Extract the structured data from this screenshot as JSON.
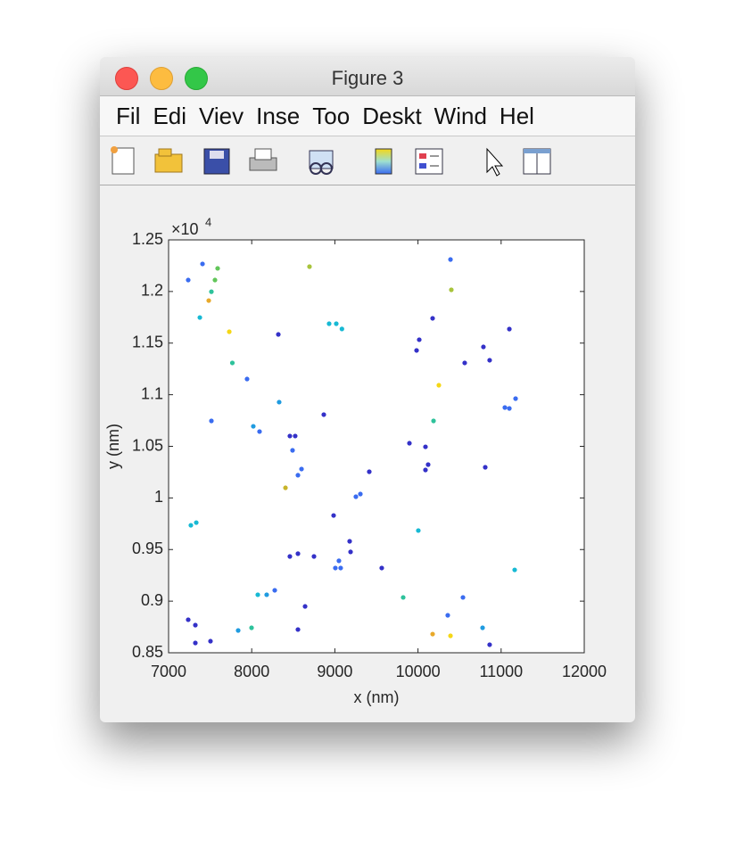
{
  "window": {
    "title": "Figure 3",
    "menu": [
      "Fil",
      "Edi",
      "Viev",
      "Inse",
      "Too",
      "Deskt",
      "Wind",
      "Hel"
    ]
  },
  "chart_data": {
    "type": "scatter",
    "xlabel": "x (nm)",
    "ylabel": "y (nm)",
    "y_exponent_base": "×10",
    "y_exponent": "4",
    "xlim": [
      7000,
      12000
    ],
    "xticks": [
      7000,
      8000,
      9000,
      10000,
      11000,
      12000
    ],
    "ylim": [
      8500,
      12500
    ],
    "yticks": [
      {
        "value": 8500,
        "label": "0.85"
      },
      {
        "value": 9000,
        "label": "0.9"
      },
      {
        "value": 9500,
        "label": "0.95"
      },
      {
        "value": 10000,
        "label": "1"
      },
      {
        "value": 10500,
        "label": "1.05"
      },
      {
        "value": 11000,
        "label": "1.1"
      },
      {
        "value": 11500,
        "label": "1.15"
      },
      {
        "value": 12000,
        "label": "1.2"
      },
      {
        "value": 12500,
        "label": "1.25"
      }
    ],
    "x": [
      7236,
      7408,
      7590,
      7558,
      7483,
      7515,
      7376,
      7730,
      7767,
      7944,
      7515,
      8019,
      8094,
      8330,
      8320,
      8695,
      8491,
      8459,
      8523,
      8599,
      8556,
      8406,
      8867,
      9017,
      8931,
      9085,
      9414,
      9307,
      9253,
      8985,
      9178,
      9189,
      9049,
      9006,
      9070,
      9564,
      8749,
      8459,
      8556,
      8277,
      8073,
      8180,
      7998,
      7837,
      8642,
      8556,
      7236,
      7322,
      7322,
      7504,
      7333,
      7268,
      10391,
      10401,
      10176,
      10015,
      9983,
      10251,
      10187,
      9897,
      10090,
      10122,
      10090,
      10004,
      9822,
      10176,
      10391,
      10358,
      10541,
      10562,
      10787,
      10862,
      11099,
      11045,
      11099,
      11174,
      10809,
      11163,
      10777,
      10862
    ],
    "y": [
      12111,
      12267,
      12224,
      12111,
      11912,
      11998,
      11748,
      11610,
      11308,
      11152,
      10746,
      10694,
      10643,
      10928,
      11584,
      12241,
      10461,
      10600,
      10600,
      10280,
      10220,
      10098,
      10807,
      11688,
      11688,
      11637,
      10254,
      10038,
      10012,
      9830,
      9580,
      9477,
      9391,
      9321,
      9321,
      9321,
      9433,
      9433,
      9460,
      9105,
      9062,
      9062,
      8742,
      8716,
      8949,
      8725,
      8820,
      8768,
      8595,
      8612,
      9761,
      9735,
      12310,
      12016,
      11740,
      11533,
      11429,
      11092,
      10746,
      10530,
      10495,
      10323,
      10271,
      9684,
      9036,
      8681,
      8664,
      8863,
      9036,
      11308,
      11463,
      11334,
      11636,
      10876,
      10867,
      10962,
      10297,
      9303,
      8742,
      8578
    ],
    "colors": [
      "#3a6cf0",
      "#3a6cf0",
      "#62c65a",
      "#62c65a",
      "#e8a92a",
      "#2ec29b",
      "#17b9d4",
      "#f5d716",
      "#2ec29b",
      "#3a6cf0",
      "#3a6cf0",
      "#1f9be0",
      "#3a6cf0",
      "#1f9be0",
      "#3431c8",
      "#a8c43c",
      "#3a6cf0",
      "#3431c8",
      "#3431c8",
      "#3a6cf0",
      "#3a6cf0",
      "#c8b42a",
      "#3431c8",
      "#17b9d4",
      "#17b9d4",
      "#17b9d4",
      "#3431c8",
      "#3a6cf0",
      "#3a6cf0",
      "#3431c8",
      "#3431c8",
      "#3431c8",
      "#3a6cf0",
      "#3a6cf0",
      "#3a6cf0",
      "#3431c8",
      "#3431c8",
      "#3431c8",
      "#3431c8",
      "#3a6cf0",
      "#17b9d4",
      "#1f9be0",
      "#2ec29b",
      "#1f9be0",
      "#3431c8",
      "#3431c8",
      "#3431c8",
      "#3431c8",
      "#3431c8",
      "#3431c8",
      "#17b9d4",
      "#17b9d4",
      "#3a6cf0",
      "#a8c43c",
      "#3431c8",
      "#3431c8",
      "#3431c8",
      "#f5d716",
      "#2ec29b",
      "#3431c8",
      "#3431c8",
      "#3431c8",
      "#3431c8",
      "#17b9d4",
      "#2ec29b",
      "#e8a92a",
      "#f5d716",
      "#3a6cf0",
      "#3a6cf0",
      "#3431c8",
      "#3431c8",
      "#3431c8",
      "#3431c8",
      "#3a6cf0",
      "#3a6cf0",
      "#3a6cf0",
      "#3431c8",
      "#17b9d4",
      "#1f9be0",
      "#3431c8"
    ]
  }
}
